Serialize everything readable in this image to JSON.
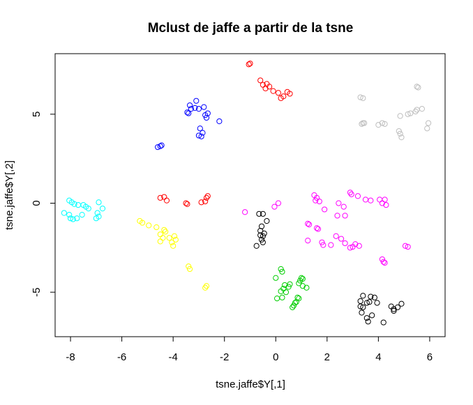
{
  "chart_data": {
    "type": "scatter",
    "title": "Mclust de jaffe a partir de la tsne",
    "xlabel": "tsne.jaffe$Y[,1]",
    "ylabel": "tsne.jaffe$Y[,2]",
    "xlim": [
      -8.6,
      6.6
    ],
    "ylim": [
      -7.5,
      8.4
    ],
    "xticks": [
      -8,
      -6,
      -4,
      -2,
      0,
      2,
      4,
      6
    ],
    "xtick_labels": [
      "-8",
      "-6",
      "-4",
      "-2",
      "0",
      "2",
      "4",
      "6"
    ],
    "yticks": [
      -5,
      0,
      5
    ],
    "ytick_labels": [
      "-5",
      "0",
      "5"
    ],
    "grid": false,
    "legend": "none",
    "marker": "open-circle",
    "series": [
      {
        "color": "#ff0000",
        "points": [
          [
            -1.0,
            7.85
          ],
          [
            -1.05,
            7.8
          ],
          [
            -0.6,
            6.9
          ],
          [
            -0.5,
            6.65
          ],
          [
            -0.35,
            6.7
          ],
          [
            -0.4,
            6.45
          ],
          [
            -0.1,
            6.3
          ],
          [
            -0.25,
            6.55
          ],
          [
            0.1,
            6.2
          ],
          [
            0.3,
            6.0
          ],
          [
            0.2,
            5.9
          ],
          [
            0.45,
            6.25
          ],
          [
            0.55,
            6.15
          ],
          [
            -4.5,
            0.3
          ],
          [
            -4.35,
            0.35
          ],
          [
            -4.25,
            0.15
          ],
          [
            -3.5,
            0.0
          ],
          [
            -3.45,
            -0.05
          ],
          [
            -2.9,
            0.05
          ],
          [
            -2.75,
            0.1
          ],
          [
            -2.65,
            0.4
          ],
          [
            -2.7,
            0.3
          ]
        ]
      },
      {
        "color": "#0000ff",
        "points": [
          [
            -3.1,
            5.75
          ],
          [
            -3.35,
            5.5
          ],
          [
            -3.3,
            5.3
          ],
          [
            -3.15,
            5.35
          ],
          [
            -3.0,
            5.3
          ],
          [
            -2.8,
            5.4
          ],
          [
            -3.45,
            5.1
          ],
          [
            -3.4,
            5.05
          ],
          [
            -2.75,
            4.95
          ],
          [
            -2.65,
            5.05
          ],
          [
            -2.7,
            4.8
          ],
          [
            -2.2,
            4.6
          ],
          [
            -2.95,
            4.2
          ],
          [
            -2.85,
            3.95
          ],
          [
            -3.0,
            3.8
          ],
          [
            -2.9,
            3.75
          ],
          [
            -4.6,
            3.15
          ],
          [
            -4.5,
            3.2
          ],
          [
            -4.45,
            3.25
          ]
        ]
      },
      {
        "color": "#bebebe",
        "points": [
          [
            5.5,
            6.55
          ],
          [
            5.55,
            6.5
          ],
          [
            3.3,
            5.95
          ],
          [
            3.4,
            5.9
          ],
          [
            5.7,
            5.3
          ],
          [
            5.5,
            5.25
          ],
          [
            5.45,
            5.15
          ],
          [
            5.25,
            5.05
          ],
          [
            5.15,
            5.0
          ],
          [
            4.85,
            4.9
          ],
          [
            3.4,
            4.5
          ],
          [
            3.35,
            4.45
          ],
          [
            3.45,
            4.5
          ],
          [
            4.0,
            4.4
          ],
          [
            4.15,
            4.5
          ],
          [
            4.25,
            4.45
          ],
          [
            5.95,
            4.5
          ],
          [
            5.9,
            4.2
          ],
          [
            4.8,
            4.05
          ],
          [
            4.85,
            3.9
          ],
          [
            4.9,
            3.7
          ]
        ]
      },
      {
        "color": "#00ffff",
        "points": [
          [
            -8.05,
            0.15
          ],
          [
            -7.95,
            0.05
          ],
          [
            -7.85,
            -0.05
          ],
          [
            -7.7,
            -0.1
          ],
          [
            -7.5,
            -0.1
          ],
          [
            -7.4,
            -0.2
          ],
          [
            -7.3,
            -0.3
          ],
          [
            -6.9,
            0.05
          ],
          [
            -6.75,
            -0.3
          ],
          [
            -8.25,
            -0.55
          ],
          [
            -8.05,
            -0.65
          ],
          [
            -7.55,
            -0.65
          ],
          [
            -6.95,
            -0.55
          ],
          [
            -6.9,
            -0.75
          ],
          [
            -8.0,
            -0.85
          ],
          [
            -7.9,
            -0.9
          ],
          [
            -7.75,
            -0.85
          ],
          [
            -7.0,
            -0.85
          ]
        ]
      },
      {
        "color": "#ffff00",
        "points": [
          [
            -5.3,
            -1.0
          ],
          [
            -5.2,
            -1.1
          ],
          [
            -4.95,
            -1.25
          ],
          [
            -4.65,
            -1.35
          ],
          [
            -4.35,
            -1.5
          ],
          [
            -4.3,
            -1.6
          ],
          [
            -4.5,
            -1.75
          ],
          [
            -4.4,
            -1.95
          ],
          [
            -4.15,
            -1.95
          ],
          [
            -3.95,
            -1.85
          ],
          [
            -3.9,
            -2.05
          ],
          [
            -4.05,
            -2.2
          ],
          [
            -4.0,
            -2.4
          ],
          [
            -4.5,
            -2.15
          ],
          [
            -3.4,
            -3.55
          ],
          [
            -3.35,
            -3.7
          ],
          [
            -2.7,
            -4.65
          ],
          [
            -2.75,
            -4.75
          ]
        ]
      },
      {
        "color": "#000000",
        "points": [
          [
            -0.65,
            -0.6
          ],
          [
            -0.5,
            -0.6
          ],
          [
            -0.35,
            -1.0
          ],
          [
            -0.55,
            -1.3
          ],
          [
            -0.6,
            -1.55
          ],
          [
            -0.45,
            -1.7
          ],
          [
            -0.6,
            -1.8
          ],
          [
            -0.5,
            -1.85
          ],
          [
            -0.55,
            -2.05
          ],
          [
            -0.5,
            -2.2
          ],
          [
            -0.75,
            -2.4
          ],
          [
            3.4,
            -5.2
          ],
          [
            3.7,
            -5.25
          ],
          [
            3.85,
            -5.3
          ],
          [
            3.3,
            -5.5
          ],
          [
            3.55,
            -5.6
          ],
          [
            3.65,
            -5.55
          ],
          [
            3.95,
            -5.6
          ],
          [
            3.3,
            -5.8
          ],
          [
            3.4,
            -5.85
          ],
          [
            4.5,
            -5.8
          ],
          [
            4.6,
            -5.95
          ],
          [
            4.75,
            -5.85
          ],
          [
            4.9,
            -5.65
          ],
          [
            3.35,
            -6.15
          ],
          [
            3.75,
            -6.3
          ],
          [
            3.55,
            -6.45
          ],
          [
            3.6,
            -6.65
          ],
          [
            4.6,
            -6.05
          ],
          [
            4.2,
            -6.7
          ]
        ]
      },
      {
        "color": "#ff00ff",
        "points": [
          [
            -1.2,
            -0.5
          ],
          [
            -0.05,
            -0.2
          ],
          [
            0.1,
            0.0
          ],
          [
            1.5,
            0.45
          ],
          [
            1.6,
            0.3
          ],
          [
            1.55,
            0.15
          ],
          [
            1.7,
            0.1
          ],
          [
            1.9,
            -0.35
          ],
          [
            2.45,
            0.0
          ],
          [
            2.65,
            -0.2
          ],
          [
            2.9,
            0.6
          ],
          [
            2.95,
            0.5
          ],
          [
            3.2,
            0.4
          ],
          [
            3.5,
            0.2
          ],
          [
            3.7,
            0.15
          ],
          [
            4.05,
            0.2
          ],
          [
            4.25,
            0.2
          ],
          [
            4.15,
            0.0
          ],
          [
            4.3,
            -0.1
          ],
          [
            1.25,
            -1.15
          ],
          [
            1.3,
            -1.2
          ],
          [
            1.6,
            -1.4
          ],
          [
            1.65,
            -1.45
          ],
          [
            2.4,
            -0.7
          ],
          [
            2.7,
            -0.7
          ],
          [
            1.25,
            -2.1
          ],
          [
            1.8,
            -2.2
          ],
          [
            1.85,
            -2.35
          ],
          [
            2.15,
            -2.35
          ],
          [
            2.35,
            -1.85
          ],
          [
            2.55,
            -2.0
          ],
          [
            2.7,
            -2.25
          ],
          [
            3.0,
            -2.45
          ],
          [
            3.1,
            -2.3
          ],
          [
            3.25,
            -2.4
          ],
          [
            2.9,
            -2.5
          ],
          [
            4.15,
            -3.15
          ],
          [
            4.25,
            -3.35
          ],
          [
            4.2,
            -3.3
          ],
          [
            5.05,
            -2.4
          ],
          [
            5.15,
            -2.45
          ]
        ]
      },
      {
        "color": "#00cd00",
        "points": [
          [
            0.2,
            -3.7
          ],
          [
            0.25,
            -3.85
          ],
          [
            0.0,
            -4.2
          ],
          [
            0.3,
            -4.8
          ],
          [
            0.35,
            -4.6
          ],
          [
            0.5,
            -4.7
          ],
          [
            0.55,
            -4.55
          ],
          [
            0.4,
            -5.0
          ],
          [
            0.2,
            -4.95
          ],
          [
            0.05,
            -5.35
          ],
          [
            0.25,
            -5.3
          ],
          [
            0.85,
            -5.3
          ],
          [
            0.9,
            -5.35
          ],
          [
            0.8,
            -5.55
          ],
          [
            0.75,
            -5.6
          ],
          [
            0.7,
            -5.75
          ],
          [
            0.65,
            -5.85
          ],
          [
            1.0,
            -4.2
          ],
          [
            1.05,
            -4.25
          ],
          [
            0.95,
            -4.35
          ],
          [
            0.9,
            -4.5
          ],
          [
            1.05,
            -4.65
          ],
          [
            1.2,
            -4.75
          ]
        ]
      }
    ]
  }
}
